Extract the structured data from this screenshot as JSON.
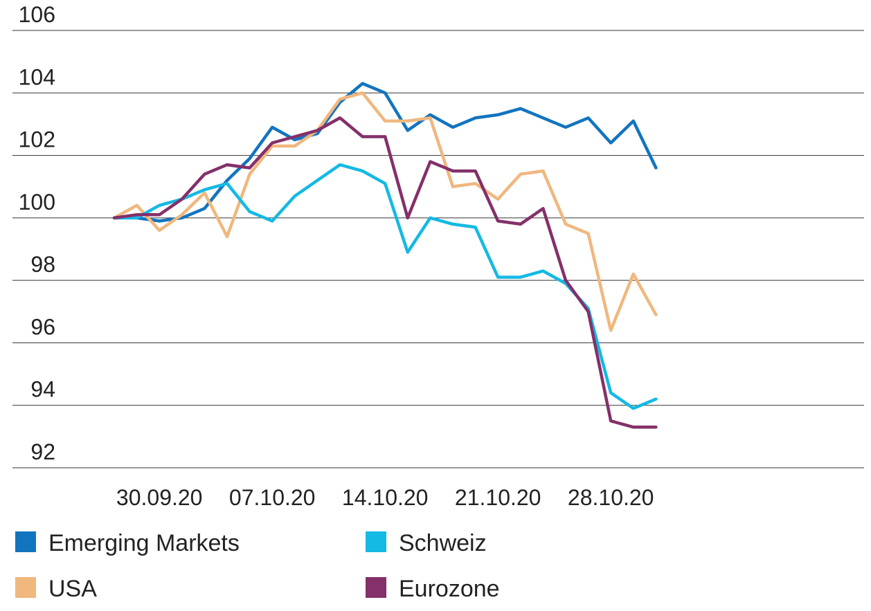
{
  "chart_data": {
    "type": "line",
    "title": "",
    "xlabel": "",
    "ylabel": "",
    "ylim": [
      92,
      106
    ],
    "yticks": [
      "106",
      "104",
      "102",
      "100",
      "98",
      "96",
      "94",
      "92"
    ],
    "x_ticks": [
      "30.09.20",
      "07.10.20",
      "14.10.20",
      "21.10.20",
      "28.10.20"
    ],
    "x": [
      "28.09.20",
      "29.09.20",
      "30.09.20",
      "01.10.20",
      "02.10.20",
      "05.10.20",
      "06.10.20",
      "07.10.20",
      "08.10.20",
      "09.10.20",
      "12.10.20",
      "13.10.20",
      "14.10.20",
      "15.10.20",
      "16.10.20",
      "19.10.20",
      "20.10.20",
      "21.10.20",
      "22.10.20",
      "23.10.20",
      "26.10.20",
      "27.10.20",
      "28.10.20",
      "29.10.20",
      "30.10.20"
    ],
    "grid": "horizontal",
    "legend_position": "bottom",
    "series": [
      {
        "name": "Emerging Markets",
        "color": "#1274BF",
        "values": [
          100.0,
          100.0,
          99.9,
          100.0,
          100.3,
          101.2,
          101.9,
          102.9,
          102.5,
          102.7,
          103.7,
          104.3,
          104.0,
          102.8,
          103.3,
          102.9,
          103.2,
          103.3,
          103.5,
          103.2,
          102.9,
          103.2,
          102.4,
          103.1,
          101.6
        ]
      },
      {
        "name": "USA",
        "color": "#F0B77E",
        "values": [
          100.0,
          100.4,
          99.6,
          100.1,
          100.8,
          99.4,
          101.4,
          102.3,
          102.3,
          102.8,
          103.8,
          104.0,
          103.1,
          103.1,
          103.2,
          101.0,
          101.1,
          100.6,
          101.4,
          101.5,
          99.8,
          99.5,
          96.4,
          98.2,
          96.9
        ]
      },
      {
        "name": "Schweiz",
        "color": "#14B9E4",
        "values": [
          100.0,
          100.0,
          100.4,
          100.6,
          100.9,
          101.1,
          100.2,
          99.9,
          100.7,
          101.2,
          101.7,
          101.5,
          101.1,
          98.9,
          100.0,
          99.8,
          99.7,
          98.1,
          98.1,
          98.3,
          97.9,
          97.1,
          94.4,
          93.9,
          94.2
        ]
      },
      {
        "name": "Eurozone",
        "color": "#84306A",
        "values": [
          100.0,
          100.1,
          100.1,
          100.6,
          101.4,
          101.7,
          101.6,
          102.4,
          102.6,
          102.8,
          103.2,
          102.6,
          102.6,
          100.0,
          101.8,
          101.5,
          101.5,
          99.9,
          99.8,
          100.3,
          98.0,
          97.0,
          93.5,
          93.3,
          93.3
        ]
      }
    ]
  }
}
